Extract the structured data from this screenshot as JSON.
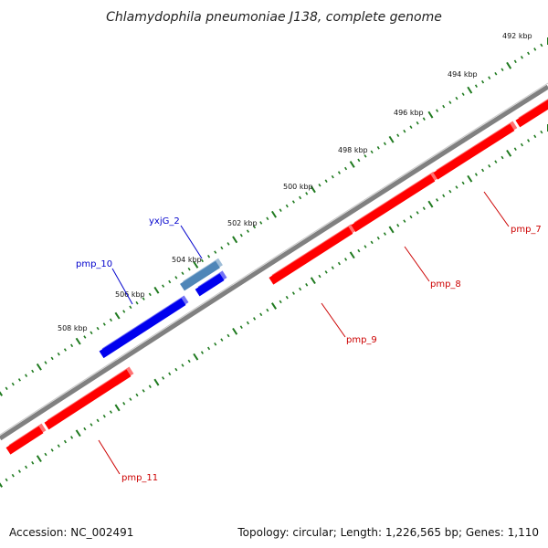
{
  "title": "Chlamydophila pneumoniae J138, complete genome",
  "footer": {
    "accession": "Accession: NC_002491",
    "summary": "Topology: circular; Length: 1,226,565 bp; Genes: 1,110"
  },
  "ruler_labels": [
    "492 kbp",
    "494 kbp",
    "496 kbp",
    "498 kbp",
    "500 kbp",
    "502 kbp",
    "504 kbp",
    "506 kbp",
    "508 kbp"
  ],
  "genes": [
    {
      "name": "pmp_7",
      "strand": "reverse"
    },
    {
      "name": "pmp_8",
      "strand": "reverse"
    },
    {
      "name": "pmp_9",
      "strand": "reverse"
    },
    {
      "name": "pmp_10",
      "strand": "forward"
    },
    {
      "name": "yxjG_2",
      "strand": "forward"
    },
    {
      "name": "pmp_11",
      "strand": "reverse"
    }
  ],
  "colors": {
    "reverse_gene": "#ff0000",
    "forward_gene": "#0000ee",
    "forward_gene_alt": "#4f86b8",
    "ruler": "#1f7a1f",
    "backbone": "#808080",
    "label_reverse": "#cc0000",
    "label_forward": "#0000cc"
  }
}
